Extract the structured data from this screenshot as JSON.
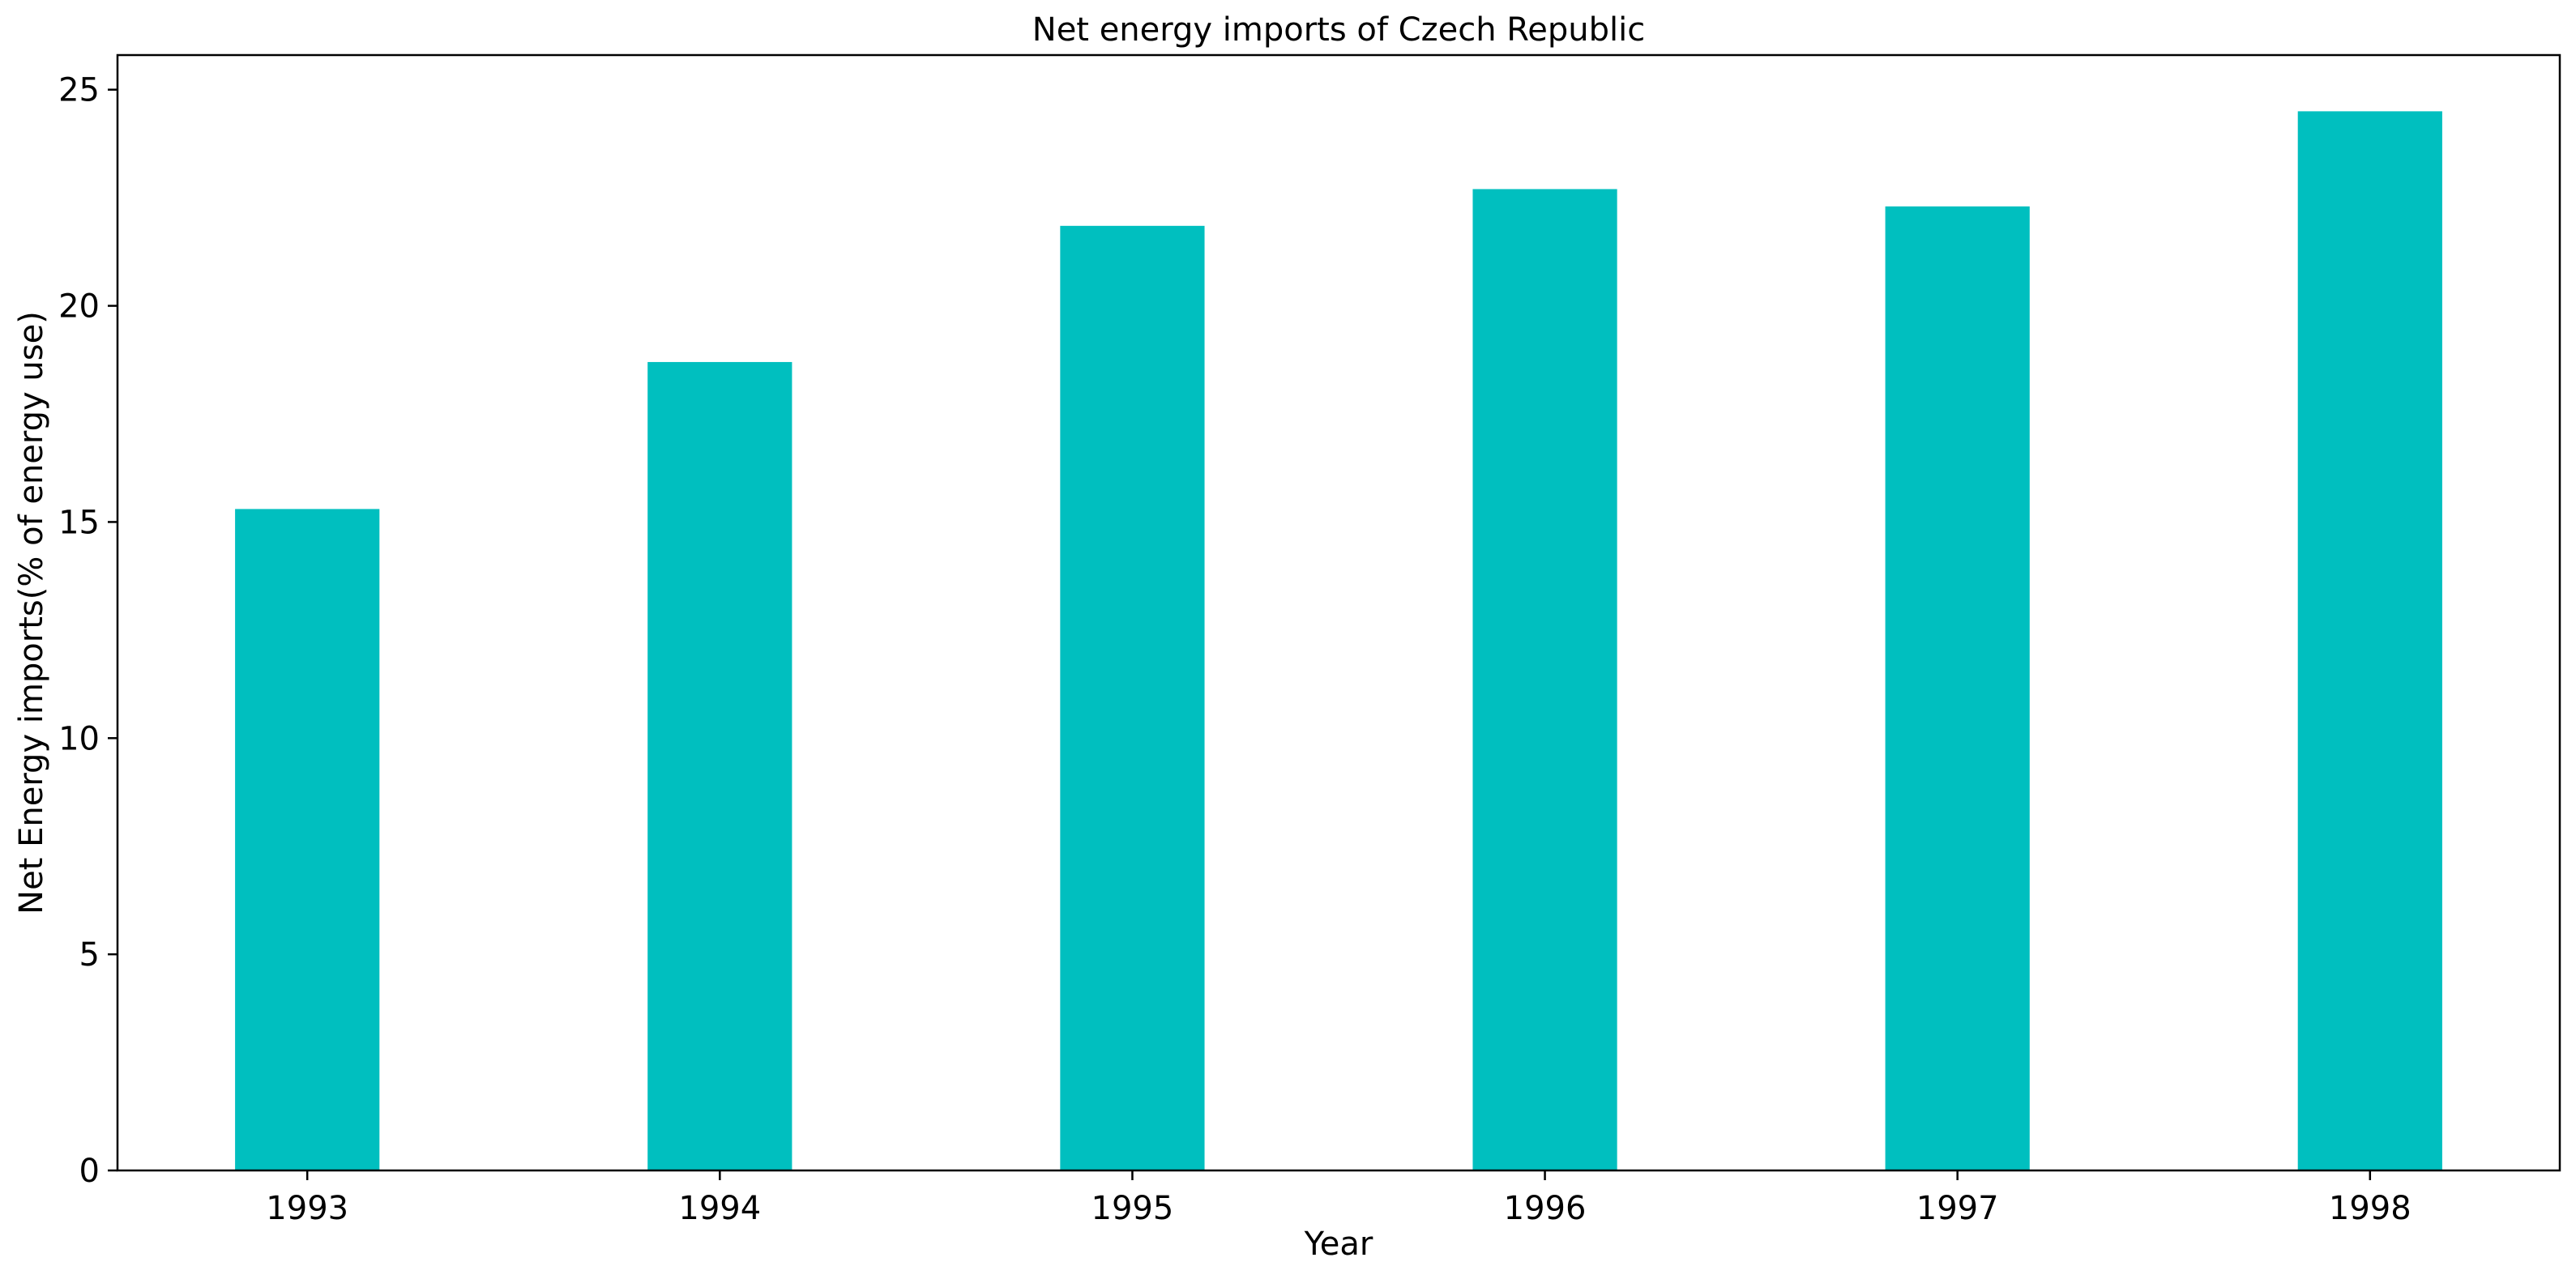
{
  "chart_data": {
    "type": "bar",
    "title": "Net energy imports of Czech Republic",
    "xlabel": "Year",
    "ylabel": "Net Energy imports(% of energy use)",
    "categories": [
      "1993",
      "1994",
      "1995",
      "1996",
      "1997",
      "1998"
    ],
    "values": [
      15.3,
      18.7,
      21.85,
      22.7,
      22.3,
      24.5
    ],
    "ylim": [
      0,
      25.8
    ],
    "yticks": [
      0,
      5,
      10,
      15,
      20,
      25
    ],
    "bar_color": "#00BFBF",
    "grid": false,
    "legend": "none"
  }
}
